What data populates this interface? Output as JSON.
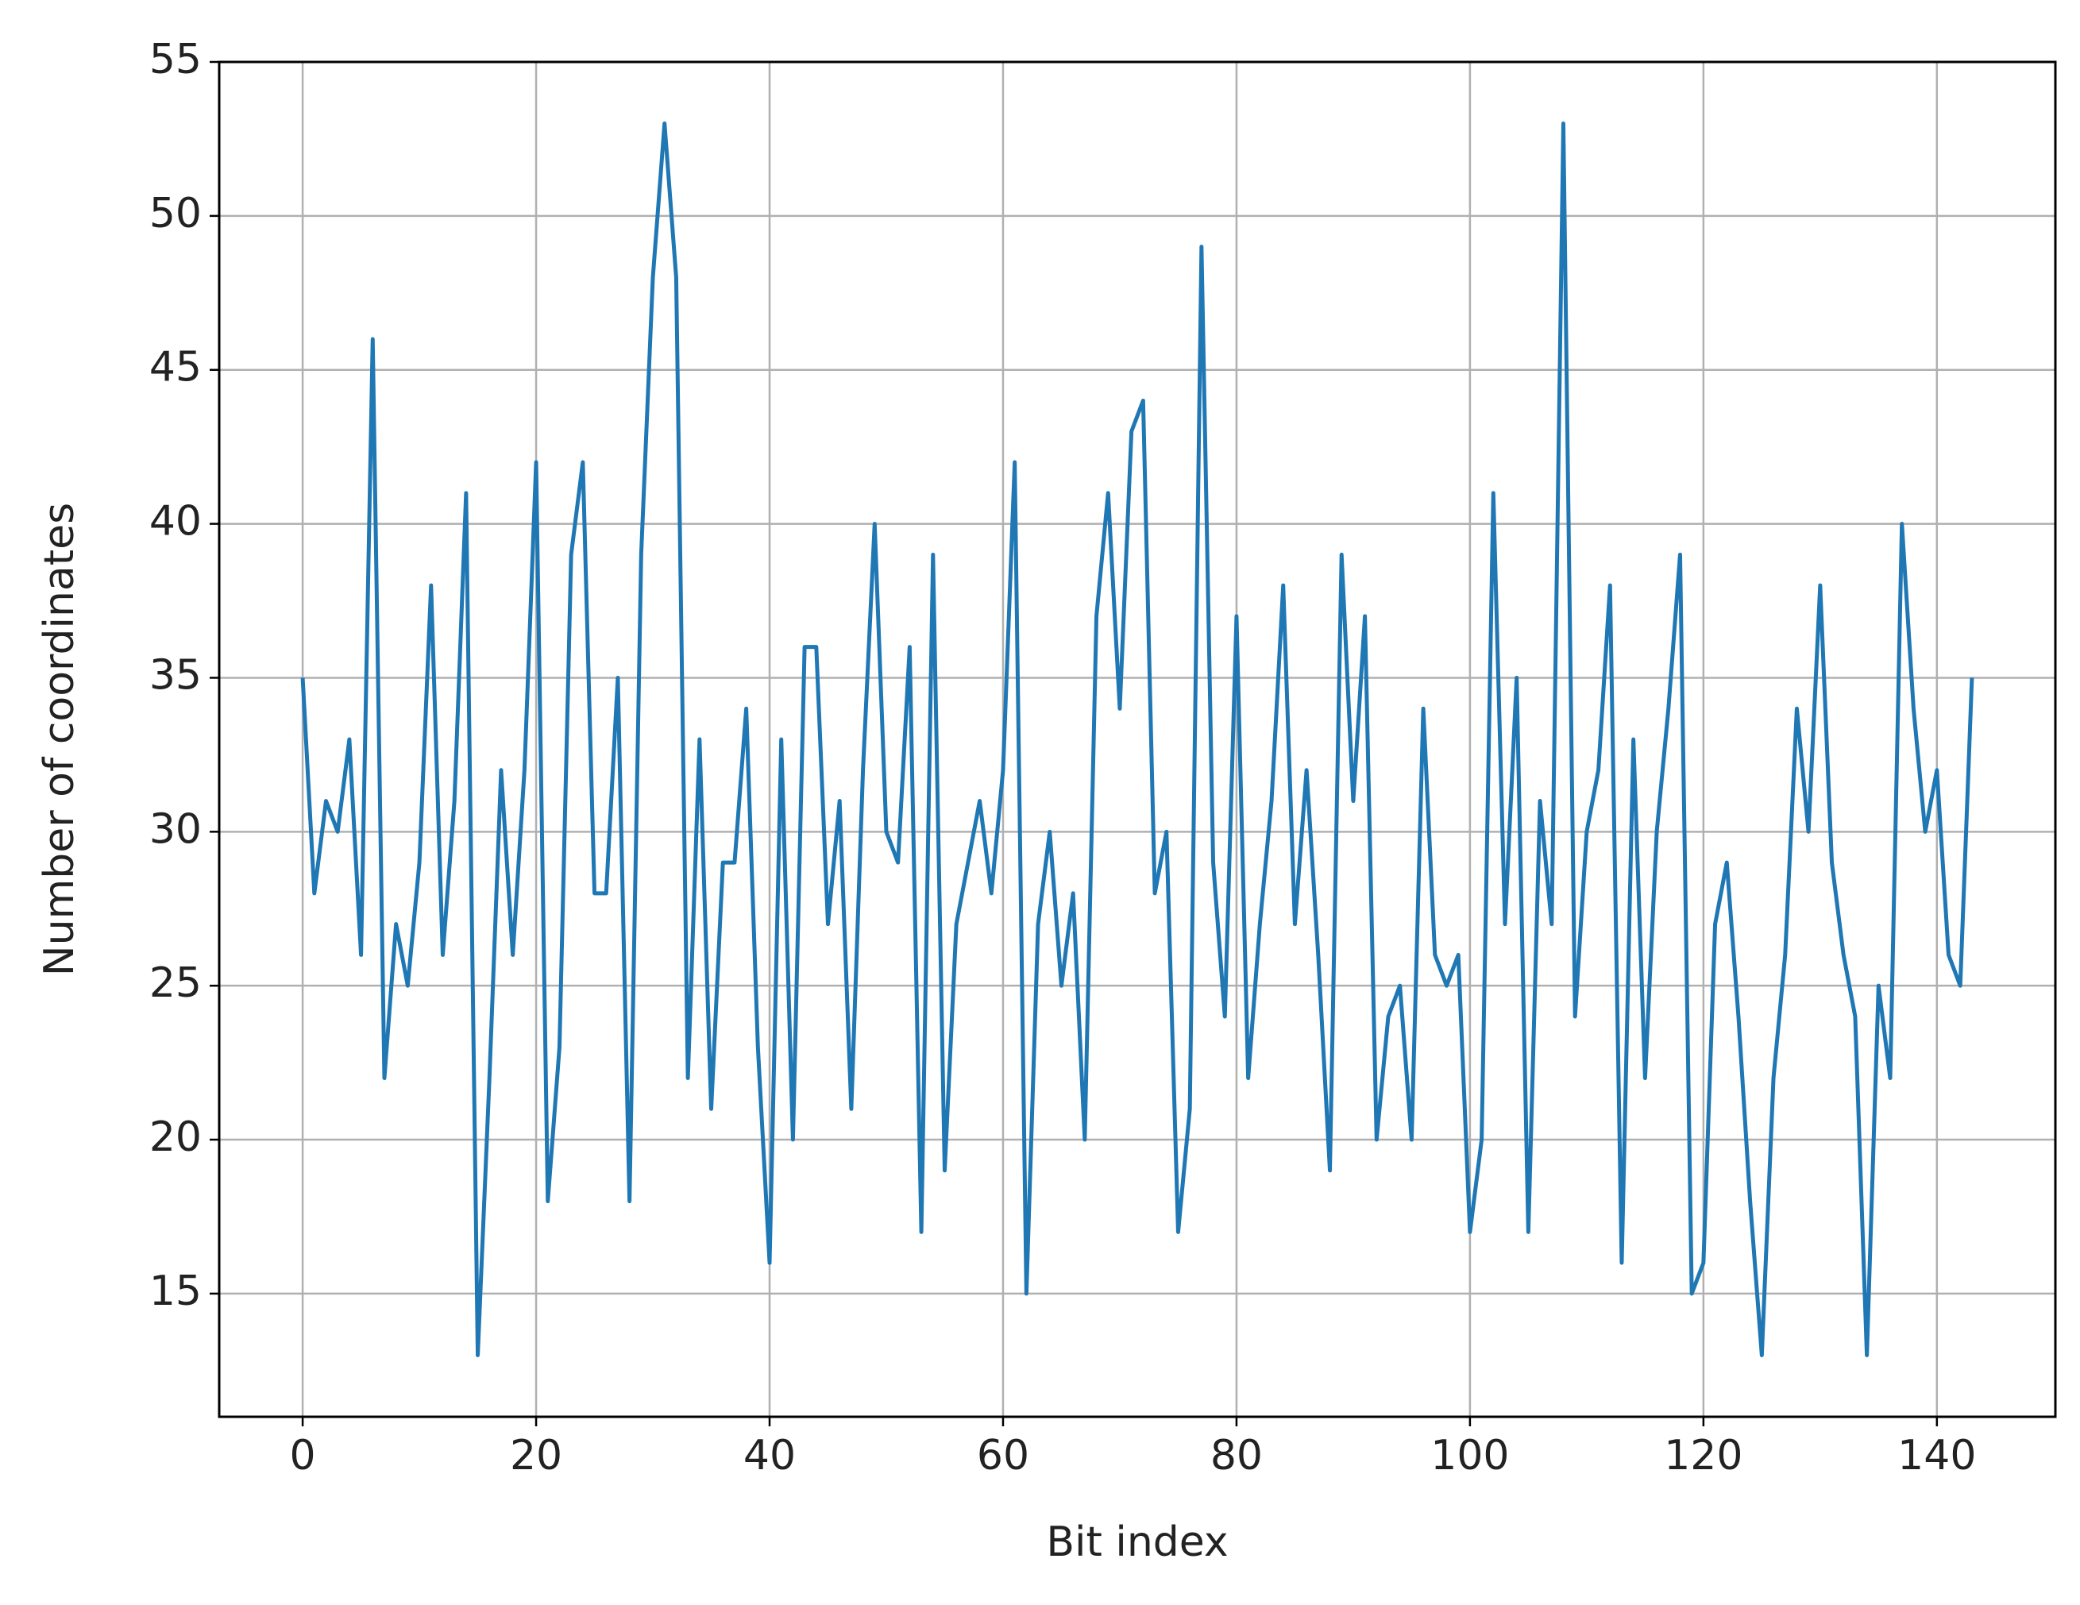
{
  "chart_data": {
    "type": "line",
    "xlabel": "Bit index",
    "ylabel": "Number of coordinates",
    "x": [
      0,
      1,
      2,
      3,
      4,
      5,
      6,
      7,
      8,
      9,
      10,
      11,
      12,
      13,
      14,
      15,
      16,
      17,
      18,
      19,
      20,
      21,
      22,
      23,
      24,
      25,
      26,
      27,
      28,
      29,
      30,
      31,
      32,
      33,
      34,
      35,
      36,
      37,
      38,
      39,
      40,
      41,
      42,
      43,
      44,
      45,
      46,
      47,
      48,
      49,
      50,
      51,
      52,
      53,
      54,
      55,
      56,
      57,
      58,
      59,
      60,
      61,
      62,
      63,
      64,
      65,
      66,
      67,
      68,
      69,
      70,
      71,
      72,
      73,
      74,
      75,
      76,
      77,
      78,
      79,
      80,
      81,
      82,
      83,
      84,
      85,
      86,
      87,
      88,
      89,
      90,
      91,
      92,
      93,
      94,
      95,
      96,
      97,
      98,
      99,
      100,
      101,
      102,
      103,
      104,
      105,
      106,
      107,
      108,
      109,
      110,
      111,
      112,
      113,
      114,
      115,
      116,
      117,
      118,
      119,
      120,
      121,
      122,
      123,
      124,
      125,
      126,
      127,
      128,
      129,
      130,
      131,
      132,
      133,
      134,
      135,
      136,
      137,
      138,
      139,
      140,
      141,
      142,
      143
    ],
    "values": [
      35,
      28,
      31,
      30,
      33,
      26,
      46,
      22,
      27,
      25,
      29,
      38,
      26,
      31,
      41,
      13,
      22,
      32,
      26,
      32,
      42,
      18,
      23,
      39,
      42,
      28,
      28,
      35,
      18,
      39,
      48,
      53,
      48,
      22,
      33,
      21,
      29,
      29,
      34,
      23,
      16,
      33,
      20,
      36,
      36,
      27,
      31,
      21,
      32,
      40,
      30,
      29,
      36,
      17,
      39,
      19,
      27,
      29,
      31,
      28,
      32,
      42,
      15,
      27,
      30,
      25,
      28,
      20,
      37,
      41,
      34,
      43,
      44,
      28,
      30,
      17,
      21,
      49,
      29,
      24,
      37,
      22,
      27,
      31,
      38,
      27,
      32,
      26,
      19,
      39,
      31,
      37,
      20,
      24,
      25,
      20,
      34,
      26,
      25,
      26,
      17,
      20,
      41,
      27,
      35,
      17,
      31,
      27,
      53,
      24,
      30,
      32,
      38,
      16,
      33,
      22,
      30,
      34,
      39,
      15,
      16,
      27,
      29,
      24,
      18,
      13,
      22,
      26,
      34,
      30,
      38,
      29,
      26,
      24,
      13,
      25,
      22,
      40,
      34,
      30,
      32,
      26,
      25,
      35
    ],
    "color": "#1f77b4",
    "xlim": [
      -7.15,
      150.15
    ],
    "xticks": [
      0,
      20,
      40,
      60,
      80,
      100,
      120,
      140
    ],
    "ylim": [
      11,
      55
    ],
    "yticks": [
      15,
      20,
      25,
      30,
      35,
      40,
      45,
      50,
      55
    ],
    "grid": true
  }
}
